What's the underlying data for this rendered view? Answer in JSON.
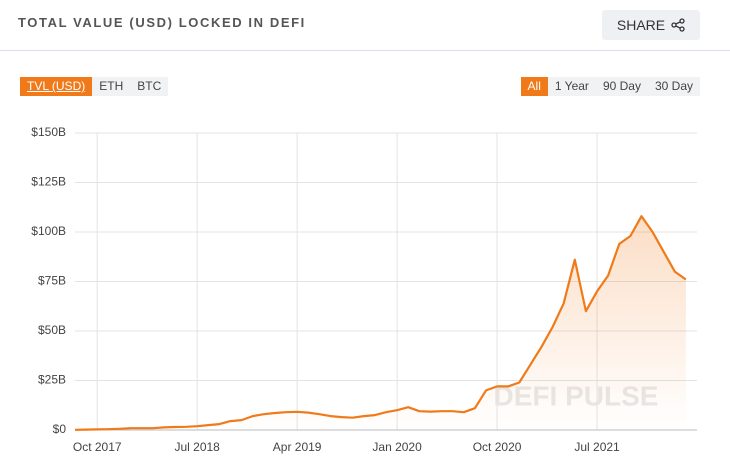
{
  "header": {
    "title": "TOTAL VALUE (USD) LOCKED IN DEFI",
    "share": "SHARE"
  },
  "left_tabs": [
    "TVL (USD)",
    "ETH",
    "BTC"
  ],
  "right_tabs": [
    "All",
    "1 Year",
    "90 Day",
    "30 Day"
  ],
  "chart_data": {
    "type": "area",
    "watermark": "DEFI PULSE",
    "color": "#f07a19",
    "x": [
      "2017-08",
      "2017-09",
      "2017-10",
      "2017-11",
      "2017-12",
      "2018-01",
      "2018-02",
      "2018-03",
      "2018-04",
      "2018-05",
      "2018-06",
      "2018-07",
      "2018-08",
      "2018-09",
      "2018-10",
      "2018-11",
      "2018-12",
      "2019-01",
      "2019-02",
      "2019-03",
      "2019-04",
      "2019-05",
      "2019-06",
      "2019-07",
      "2019-08",
      "2019-09",
      "2019-10",
      "2019-11",
      "2019-12",
      "2020-01",
      "2020-02",
      "2020-03",
      "2020-04",
      "2020-05",
      "2020-06",
      "2020-07",
      "2020-08",
      "2020-09",
      "2020-10",
      "2020-11",
      "2020-12",
      "2021-01",
      "2021-02",
      "2021-03",
      "2021-04",
      "2021-05",
      "2021-06",
      "2021-07",
      "2021-08",
      "2021-09",
      "2021-10",
      "2021-11",
      "2021-12",
      "2022-01",
      "2022-02",
      "2022-03"
    ],
    "values": [
      0.1,
      0.2,
      0.3,
      0.4,
      0.6,
      0.9,
      0.9,
      0.9,
      1.3,
      1.5,
      1.6,
      1.9,
      2.5,
      3,
      4.5,
      5,
      7,
      8,
      8.6,
      9,
      9.2,
      8.8,
      8,
      7,
      6.5,
      6.2,
      7,
      7.5,
      9,
      10,
      11.5,
      9.5,
      9.3,
      9.5,
      9.5,
      9,
      11,
      20,
      22,
      22,
      24,
      33,
      42,
      52,
      64,
      86,
      60,
      70,
      78,
      94,
      98,
      108,
      100,
      90,
      80,
      76
    ],
    "xlim": [
      "2017-08",
      "2022-04"
    ],
    "xticks": [
      {
        "value": "2017-10",
        "label": "Oct 2017"
      },
      {
        "value": "2018-07",
        "label": "Jul 2018"
      },
      {
        "value": "2019-04",
        "label": "Apr 2019"
      },
      {
        "value": "2020-01",
        "label": "Jan 2020"
      },
      {
        "value": "2020-10",
        "label": "Oct 2020"
      },
      {
        "value": "2021-07",
        "label": "Jul 2021"
      }
    ],
    "ylim": [
      0,
      150
    ],
    "yticks": [
      {
        "value": 0,
        "label": "$0"
      },
      {
        "value": 25,
        "label": "$25B"
      },
      {
        "value": 50,
        "label": "$50B"
      },
      {
        "value": 75,
        "label": "$75B"
      },
      {
        "value": 100,
        "label": "$100B"
      },
      {
        "value": 125,
        "label": "$125B"
      },
      {
        "value": 150,
        "label": "$150B"
      }
    ],
    "grid": true
  }
}
